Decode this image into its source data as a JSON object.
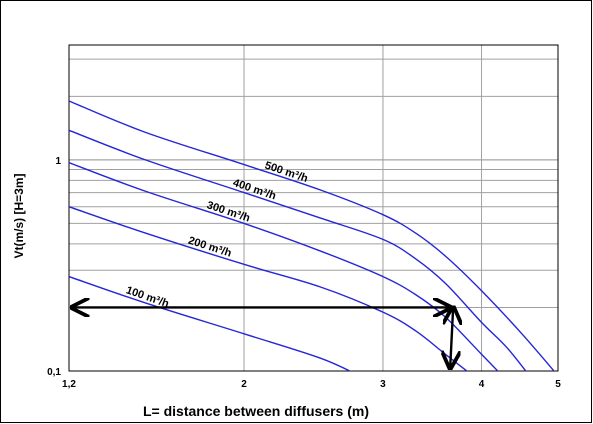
{
  "chart_data": {
    "type": "line",
    "title": "",
    "xlabel": "L= distance between diffusers (m)",
    "ylabel": "Vt(m/s) [H=3m]",
    "x_scale": "log",
    "y_scale": "log",
    "xlim": [
      1.2,
      5
    ],
    "ylim": [
      0.1,
      3.5
    ],
    "x_ticks": [
      {
        "value": 1.2,
        "label": "1,2"
      },
      {
        "value": 2,
        "label": "2"
      },
      {
        "value": 3,
        "label": "3"
      },
      {
        "value": 4,
        "label": "4"
      },
      {
        "value": 5,
        "label": "5"
      }
    ],
    "y_ticks": [
      {
        "value": 0.1,
        "label": "0,1"
      },
      {
        "value": 1,
        "label": "1"
      }
    ],
    "grid": true,
    "line_color": "#2626d8",
    "series": [
      {
        "name": "500 m³/h",
        "x": [
          1.2,
          1.5,
          2.0,
          2.5,
          3.0,
          3.3,
          3.6,
          4.0,
          4.5,
          5.0
        ],
        "y": [
          1.9,
          1.35,
          0.95,
          0.72,
          0.55,
          0.45,
          0.35,
          0.24,
          0.15,
          0.095
        ]
      },
      {
        "name": "400 m³/h",
        "x": [
          1.2,
          1.5,
          2.0,
          2.5,
          3.0,
          3.3,
          3.6,
          4.0,
          4.3,
          4.6
        ],
        "y": [
          1.38,
          1.0,
          0.7,
          0.53,
          0.42,
          0.34,
          0.26,
          0.17,
          0.13,
          0.095
        ]
      },
      {
        "name": "300 m³/h",
        "x": [
          1.2,
          1.5,
          2.0,
          2.5,
          3.0,
          3.3,
          3.6,
          4.0,
          4.25
        ],
        "y": [
          0.97,
          0.71,
          0.5,
          0.37,
          0.28,
          0.23,
          0.18,
          0.12,
          0.095
        ]
      },
      {
        "name": "200 m³/h",
        "x": [
          1.2,
          1.5,
          2.0,
          2.5,
          3.0,
          3.3,
          3.6,
          3.9
        ],
        "y": [
          0.6,
          0.45,
          0.32,
          0.25,
          0.19,
          0.155,
          0.12,
          0.095
        ]
      },
      {
        "name": "100 m³/h",
        "x": [
          1.2,
          1.5,
          2.0,
          2.5,
          2.8
        ],
        "y": [
          0.28,
          0.21,
          0.15,
          0.115,
          0.095
        ]
      }
    ],
    "annotations": [
      {
        "type": "double-arrow",
        "from": [
          1.2,
          0.2
        ],
        "to": [
          3.65,
          0.2
        ]
      },
      {
        "type": "double-arrow",
        "from": [
          3.65,
          0.2
        ],
        "to": [
          3.65,
          0.1
        ]
      }
    ]
  }
}
